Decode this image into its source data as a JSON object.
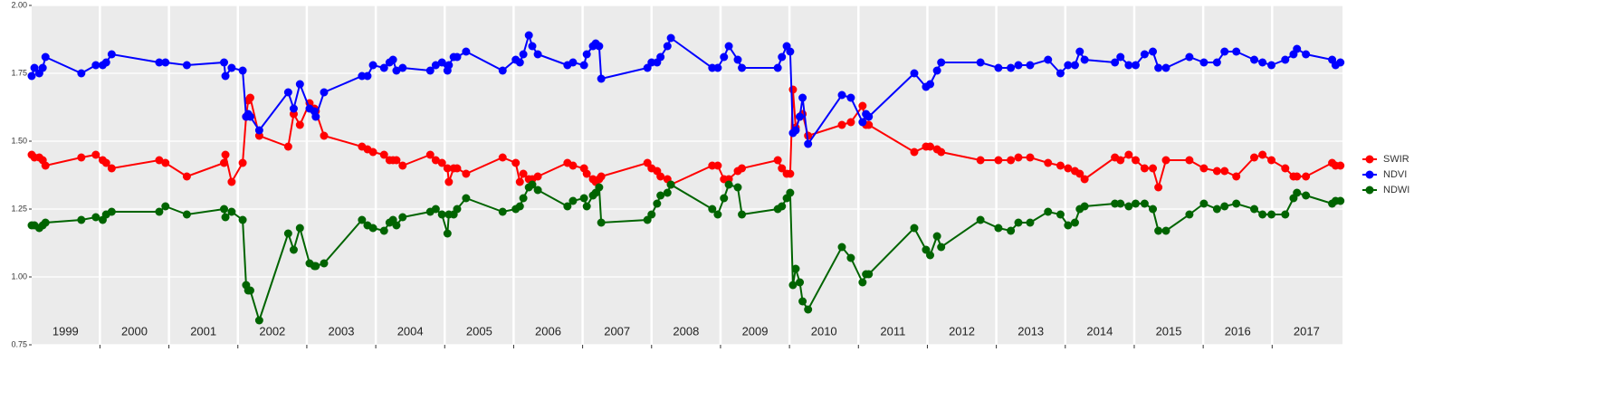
{
  "chart_data": {
    "type": "line",
    "x": [
      1999.01,
      1999.05,
      1999.12,
      1999.17,
      1999.21,
      1999.73,
      1999.94,
      2000.04,
      2000.09,
      2000.17,
      2000.86,
      2000.95,
      2001.26,
      2001.8,
      2001.82,
      2001.91,
      2002.07,
      2002.12,
      2002.15,
      2002.18,
      2002.31,
      2002.73,
      2002.81,
      2002.9,
      2003.04,
      2003.11,
      2003.13,
      2003.25,
      2003.8,
      2003.88,
      2003.96,
      2004.12,
      2004.2,
      2004.25,
      2004.3,
      2004.39,
      2004.79,
      2004.87,
      2004.96,
      2005.04,
      2005.06,
      2005.13,
      2005.18,
      2005.31,
      2005.84,
      2006.03,
      2006.09,
      2006.14,
      2006.22,
      2006.27,
      2006.35,
      2006.78,
      2006.86,
      2007.02,
      2007.06,
      2007.15,
      2007.19,
      2007.24,
      2007.27,
      2007.94,
      2008.0,
      2008.08,
      2008.13,
      2008.23,
      2008.28,
      2008.88,
      2008.96,
      2009.05,
      2009.12,
      2009.25,
      2009.31,
      2009.83,
      2009.89,
      2009.96,
      2010.01,
      2010.05,
      2010.09,
      2010.15,
      2010.19,
      2010.27,
      2010.76,
      2010.89,
      2011.06,
      2011.11,
      2011.15,
      2011.81,
      2011.98,
      2012.04,
      2012.14,
      2012.2,
      2012.77,
      2013.03,
      2013.21,
      2013.32,
      2013.49,
      2013.75,
      2013.93,
      2014.04,
      2014.14,
      2014.21,
      2014.28,
      2014.72,
      2014.8,
      2014.92,
      2015.02,
      2015.15,
      2015.27,
      2015.35,
      2015.46,
      2015.8,
      2016.01,
      2016.2,
      2016.31,
      2016.48,
      2016.74,
      2016.86,
      2016.99,
      2017.19,
      2017.31,
      2017.36,
      2017.49,
      2017.87,
      2017.92,
      2017.99
    ],
    "series": [
      {
        "name": "SWIR",
        "color": "#ff0000",
        "values": [
          1.45,
          1.44,
          1.44,
          1.43,
          1.41,
          1.44,
          1.45,
          1.43,
          1.42,
          1.4,
          1.43,
          1.42,
          1.37,
          1.42,
          1.45,
          1.35,
          1.42,
          1.59,
          1.65,
          1.66,
          1.52,
          1.48,
          1.6,
          1.56,
          1.64,
          1.62,
          1.61,
          1.52,
          1.48,
          1.47,
          1.46,
          1.45,
          1.43,
          1.43,
          1.43,
          1.41,
          1.45,
          1.43,
          1.42,
          1.4,
          1.35,
          1.4,
          1.4,
          1.38,
          1.44,
          1.42,
          1.35,
          1.38,
          1.36,
          1.36,
          1.37,
          1.42,
          1.41,
          1.4,
          1.38,
          1.36,
          1.35,
          1.36,
          1.37,
          1.42,
          1.4,
          1.39,
          1.37,
          1.36,
          1.34,
          1.41,
          1.41,
          1.36,
          1.36,
          1.39,
          1.4,
          1.43,
          1.4,
          1.38,
          1.38,
          1.69,
          1.55,
          1.59,
          1.6,
          1.52,
          1.56,
          1.57,
          1.63,
          1.56,
          1.56,
          1.46,
          1.48,
          1.48,
          1.47,
          1.46,
          1.43,
          1.43,
          1.43,
          1.44,
          1.44,
          1.42,
          1.41,
          1.4,
          1.39,
          1.38,
          1.36,
          1.44,
          1.43,
          1.45,
          1.43,
          1.4,
          1.4,
          1.33,
          1.43,
          1.43,
          1.4,
          1.39,
          1.39,
          1.37,
          1.44,
          1.45,
          1.43,
          1.4,
          1.37,
          1.37,
          1.37,
          1.42,
          1.41,
          1.41
        ]
      },
      {
        "name": "NDVI",
        "color": "#0000ff",
        "values": [
          1.74,
          1.77,
          1.75,
          1.77,
          1.81,
          1.75,
          1.78,
          1.78,
          1.79,
          1.82,
          1.79,
          1.79,
          1.78,
          1.79,
          1.74,
          1.77,
          1.76,
          1.59,
          1.6,
          1.59,
          1.54,
          1.68,
          1.62,
          1.71,
          1.62,
          1.61,
          1.59,
          1.68,
          1.74,
          1.74,
          1.78,
          1.77,
          1.79,
          1.8,
          1.76,
          1.77,
          1.76,
          1.78,
          1.79,
          1.76,
          1.78,
          1.81,
          1.81,
          1.83,
          1.76,
          1.8,
          1.79,
          1.82,
          1.89,
          1.85,
          1.82,
          1.78,
          1.79,
          1.78,
          1.82,
          1.85,
          1.86,
          1.85,
          1.73,
          1.77,
          1.79,
          1.79,
          1.81,
          1.85,
          1.88,
          1.77,
          1.77,
          1.81,
          1.85,
          1.8,
          1.77,
          1.77,
          1.81,
          1.85,
          1.83,
          1.53,
          1.54,
          1.59,
          1.66,
          1.49,
          1.67,
          1.66,
          1.57,
          1.6,
          1.59,
          1.75,
          1.7,
          1.71,
          1.76,
          1.79,
          1.79,
          1.77,
          1.77,
          1.78,
          1.78,
          1.8,
          1.75,
          1.78,
          1.78,
          1.83,
          1.8,
          1.79,
          1.81,
          1.78,
          1.78,
          1.82,
          1.83,
          1.77,
          1.77,
          1.81,
          1.79,
          1.79,
          1.83,
          1.83,
          1.8,
          1.79,
          1.78,
          1.8,
          1.82,
          1.84,
          1.82,
          1.8,
          1.78,
          1.79
        ]
      },
      {
        "name": "NDWI",
        "color": "#006400",
        "values": [
          1.19,
          1.19,
          1.18,
          1.19,
          1.2,
          1.21,
          1.22,
          1.21,
          1.23,
          1.24,
          1.24,
          1.26,
          1.23,
          1.25,
          1.22,
          1.24,
          1.21,
          0.97,
          0.95,
          0.95,
          0.84,
          1.16,
          1.1,
          1.18,
          1.05,
          1.04,
          1.04,
          1.05,
          1.21,
          1.19,
          1.18,
          1.17,
          1.2,
          1.21,
          1.19,
          1.22,
          1.24,
          1.25,
          1.23,
          1.16,
          1.23,
          1.23,
          1.25,
          1.29,
          1.24,
          1.25,
          1.26,
          1.29,
          1.33,
          1.34,
          1.32,
          1.26,
          1.28,
          1.29,
          1.26,
          1.3,
          1.31,
          1.33,
          1.2,
          1.21,
          1.23,
          1.27,
          1.3,
          1.31,
          1.34,
          1.25,
          1.23,
          1.29,
          1.34,
          1.33,
          1.23,
          1.25,
          1.26,
          1.29,
          1.31,
          0.97,
          1.03,
          0.98,
          0.91,
          0.88,
          1.11,
          1.07,
          0.98,
          1.01,
          1.01,
          1.18,
          1.1,
          1.08,
          1.15,
          1.11,
          1.21,
          1.18,
          1.17,
          1.2,
          1.2,
          1.24,
          1.23,
          1.19,
          1.2,
          1.25,
          1.26,
          1.27,
          1.27,
          1.26,
          1.27,
          1.27,
          1.25,
          1.17,
          1.17,
          1.23,
          1.27,
          1.25,
          1.26,
          1.27,
          1.25,
          1.23,
          1.23,
          1.23,
          1.29,
          1.31,
          1.3,
          1.27,
          1.28,
          1.28
        ]
      }
    ],
    "xlim": [
      1999.01,
      2018.02
    ],
    "xticks": [
      2000,
      2001,
      2002,
      2003,
      2004,
      2005,
      2006,
      2007,
      2008,
      2009,
      2010,
      2011,
      2012,
      2013,
      2014,
      2015,
      2016,
      2017
    ],
    "ylim": [
      0.75,
      2.0
    ],
    "yticks": [
      {
        "value": 0.75,
        "label": "0.75"
      },
      {
        "value": 1.0,
        "label": "1.00"
      },
      {
        "value": 1.25,
        "label": "1.25"
      },
      {
        "value": 1.5,
        "label": "1.50"
      },
      {
        "value": 1.75,
        "label": "1.75"
      },
      {
        "value": 2.0,
        "label": "2.00"
      }
    ],
    "year_labels": [
      "1999",
      "2000",
      "2001",
      "2002",
      "2003",
      "2004",
      "2005",
      "2006",
      "2007",
      "2008",
      "2009",
      "2010",
      "2011",
      "2012",
      "2013",
      "2014",
      "2015",
      "2016",
      "2017"
    ],
    "grid": true,
    "legend": "right"
  }
}
